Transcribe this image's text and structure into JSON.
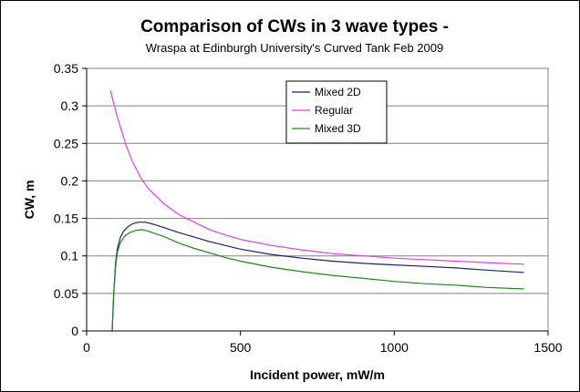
{
  "chart_data": {
    "type": "line",
    "title": "Comparison of CWs in 3 wave types -",
    "subtitle": "Wraspa at Edinburgh University's Curved Tank Feb 2009",
    "xlabel": "Incident power, mW/m",
    "ylabel": "CW, m",
    "xlim": [
      0,
      1500
    ],
    "ylim": [
      0,
      0.35
    ],
    "x_ticks": [
      0,
      500,
      1000,
      1500
    ],
    "x_tick_labels": [
      "0",
      "500",
      "1000",
      "1500"
    ],
    "y_ticks": [
      0,
      0.05,
      0.1,
      0.15,
      0.2,
      0.25,
      0.3,
      0.35
    ],
    "y_tick_labels": [
      "0",
      "0.05",
      "0.1",
      "0.15",
      "0.2",
      "0.25",
      "0.3",
      "0.35"
    ],
    "grid": {
      "horizontal": true,
      "vertical": false
    },
    "legend_position": "top-center",
    "series": [
      {
        "name": "Mixed 2D",
        "color": "#1f1f7a",
        "points": [
          [
            83,
            0.0
          ],
          [
            88,
            0.05
          ],
          [
            94,
            0.09
          ],
          [
            100,
            0.11
          ],
          [
            110,
            0.125
          ],
          [
            120,
            0.133
          ],
          [
            135,
            0.139
          ],
          [
            150,
            0.143
          ],
          [
            170,
            0.145
          ],
          [
            190,
            0.145
          ],
          [
            210,
            0.143
          ],
          [
            250,
            0.138
          ],
          [
            300,
            0.131
          ],
          [
            350,
            0.125
          ],
          [
            400,
            0.119
          ],
          [
            450,
            0.114
          ],
          [
            500,
            0.109
          ],
          [
            600,
            0.102
          ],
          [
            700,
            0.097
          ],
          [
            800,
            0.093
          ],
          [
            900,
            0.09
          ],
          [
            1000,
            0.088
          ],
          [
            1100,
            0.086
          ],
          [
            1200,
            0.084
          ],
          [
            1300,
            0.081
          ],
          [
            1420,
            0.078
          ]
        ]
      },
      {
        "name": "Regular",
        "color": "#e040e0",
        "points": [
          [
            78,
            0.32
          ],
          [
            90,
            0.3
          ],
          [
            100,
            0.285
          ],
          [
            115,
            0.265
          ],
          [
            130,
            0.245
          ],
          [
            150,
            0.225
          ],
          [
            175,
            0.205
          ],
          [
            200,
            0.19
          ],
          [
            250,
            0.17
          ],
          [
            300,
            0.155
          ],
          [
            350,
            0.145
          ],
          [
            400,
            0.135
          ],
          [
            450,
            0.128
          ],
          [
            500,
            0.122
          ],
          [
            600,
            0.114
          ],
          [
            700,
            0.108
          ],
          [
            800,
            0.103
          ],
          [
            900,
            0.1
          ],
          [
            1000,
            0.097
          ],
          [
            1100,
            0.095
          ],
          [
            1200,
            0.093
          ],
          [
            1300,
            0.091
          ],
          [
            1420,
            0.089
          ]
        ]
      },
      {
        "name": "Mixed 3D",
        "color": "#1a8a1a",
        "points": [
          [
            83,
            0.0
          ],
          [
            88,
            0.05
          ],
          [
            94,
            0.085
          ],
          [
            100,
            0.105
          ],
          [
            110,
            0.118
          ],
          [
            125,
            0.127
          ],
          [
            140,
            0.131
          ],
          [
            160,
            0.134
          ],
          [
            180,
            0.135
          ],
          [
            200,
            0.133
          ],
          [
            250,
            0.126
          ],
          [
            300,
            0.117
          ],
          [
            350,
            0.11
          ],
          [
            400,
            0.104
          ],
          [
            450,
            0.098
          ],
          [
            500,
            0.093
          ],
          [
            600,
            0.085
          ],
          [
            700,
            0.079
          ],
          [
            800,
            0.074
          ],
          [
            900,
            0.07
          ],
          [
            1000,
            0.066
          ],
          [
            1100,
            0.063
          ],
          [
            1200,
            0.061
          ],
          [
            1300,
            0.058
          ],
          [
            1420,
            0.056
          ]
        ]
      }
    ]
  }
}
